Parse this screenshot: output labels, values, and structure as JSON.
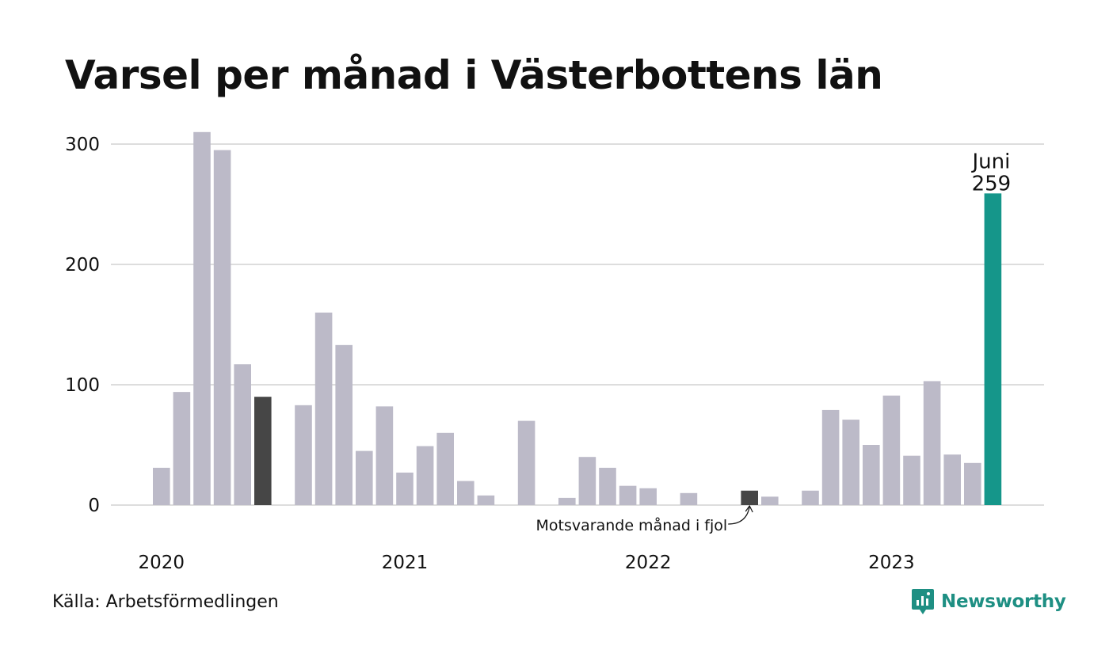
{
  "title": "Varsel per månad i Västerbottens län",
  "source": "Källa: Arbetsförmedlingen",
  "brand": {
    "name": "Newsworthy",
    "icon": "newsworthy-logo-icon",
    "color": "#1e8f83"
  },
  "colors": {
    "bar": "#bcbac8",
    "comparison": "#464646",
    "current": "#15968a",
    "grid": "#dddddd"
  },
  "chart_data": {
    "type": "bar",
    "ylim": [
      0,
      320
    ],
    "yticks": [
      "0",
      "100",
      "200",
      "300"
    ],
    "xtick_labels": [
      {
        "label": "2020",
        "month_index": 0
      },
      {
        "label": "2021",
        "month_index": 12
      },
      {
        "label": "2022",
        "month_index": 24
      },
      {
        "label": "2023",
        "month_index": 36
      }
    ],
    "months": [
      "2020-01",
      "2020-02",
      "2020-03",
      "2020-04",
      "2020-05",
      "2020-06",
      "2020-07",
      "2020-08",
      "2020-09",
      "2020-10",
      "2020-11",
      "2020-12",
      "2021-01",
      "2021-02",
      "2021-03",
      "2021-04",
      "2021-05",
      "2021-06",
      "2021-07",
      "2021-08",
      "2021-09",
      "2021-10",
      "2021-11",
      "2021-12",
      "2022-01",
      "2022-02",
      "2022-03",
      "2022-04",
      "2022-05",
      "2022-06",
      "2022-07",
      "2022-08",
      "2022-09",
      "2022-10",
      "2022-11",
      "2022-12",
      "2023-01",
      "2023-02",
      "2023-03",
      "2023-04",
      "2023-05",
      "2023-06"
    ],
    "values": [
      31,
      94,
      310,
      295,
      117,
      90,
      0,
      83,
      160,
      133,
      45,
      82,
      27,
      49,
      60,
      20,
      8,
      0,
      70,
      0,
      6,
      40,
      31,
      16,
      14,
      0,
      10,
      0,
      0,
      12,
      7,
      0,
      12,
      79,
      71,
      50,
      91,
      41,
      103,
      42,
      35,
      259
    ],
    "highlight": [
      {
        "month": "2020-06",
        "role": "comparison"
      },
      {
        "month": "2022-06",
        "role": "comparison"
      },
      {
        "month": "2023-06",
        "role": "current"
      }
    ],
    "current_label": {
      "month": "Juni",
      "value": "259"
    },
    "annotation": {
      "text": "Motsvarande månad i fjol",
      "month": "2022-06"
    },
    "grid": true
  }
}
